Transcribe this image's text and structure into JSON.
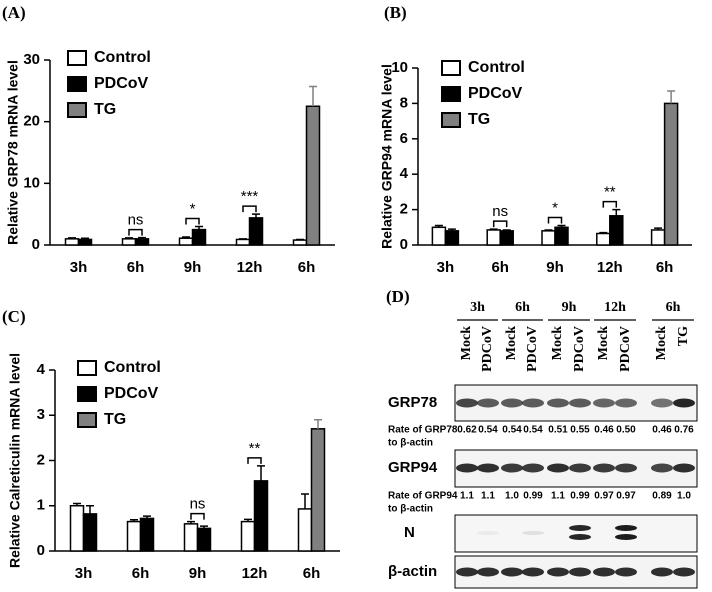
{
  "chart_data": [
    {
      "type": "bar",
      "panel": "(A)",
      "ylabel": "Relative GRP78 mRNA level",
      "categories": [
        "3h",
        "6h",
        "9h",
        "12h",
        "6h"
      ],
      "series": [
        {
          "name": "Control",
          "color": "#ffffff",
          "values": [
            1.0,
            1.0,
            1.1,
            0.9,
            0.8
          ],
          "errors": [
            0.15,
            0.15,
            0.2,
            0.1,
            0.1
          ]
        },
        {
          "name": "PDCoV",
          "color": "#000000",
          "values": [
            0.9,
            1.0,
            2.5,
            4.4,
            null
          ],
          "errors": [
            0.2,
            0.2,
            0.5,
            0.6,
            null
          ]
        },
        {
          "name": "TG",
          "color": "#808080",
          "values": [
            null,
            null,
            null,
            null,
            22.5
          ],
          "errors": [
            null,
            null,
            null,
            null,
            3.2
          ]
        }
      ],
      "annotations": [
        null,
        "ns",
        "*",
        "***",
        null
      ],
      "ylim": [
        0,
        30
      ],
      "yticks": [
        0,
        10,
        20,
        30
      ]
    },
    {
      "type": "bar",
      "panel": "(B)",
      "ylabel": "Relative GRP94 mRNA level",
      "categories": [
        "3h",
        "6h",
        "9h",
        "12h",
        "6h"
      ],
      "series": [
        {
          "name": "Control",
          "color": "#ffffff",
          "values": [
            1.0,
            0.85,
            0.8,
            0.65,
            0.85
          ],
          "errors": [
            0.1,
            0.05,
            0.05,
            0.05,
            0.1
          ]
        },
        {
          "name": "PDCoV",
          "color": "#000000",
          "values": [
            0.8,
            0.8,
            1.0,
            1.65,
            null
          ],
          "errors": [
            0.1,
            0.05,
            0.1,
            0.35,
            null
          ]
        },
        {
          "name": "TG",
          "color": "#808080",
          "values": [
            null,
            null,
            null,
            null,
            8.0
          ],
          "errors": [
            null,
            null,
            null,
            null,
            0.7
          ]
        }
      ],
      "annotations": [
        null,
        "ns",
        "*",
        "**",
        null
      ],
      "ylim": [
        0,
        10
      ],
      "yticks": [
        0,
        2,
        4,
        6,
        8,
        10
      ]
    },
    {
      "type": "bar",
      "panel": "(C)",
      "ylabel": "Relative Calreticulin mRNA level",
      "categories": [
        "3h",
        "6h",
        "9h",
        "12h",
        "6h"
      ],
      "series": [
        {
          "name": "Control",
          "color": "#ffffff",
          "values": [
            1.0,
            0.65,
            0.6,
            0.65,
            0.93
          ],
          "errors": [
            0.05,
            0.04,
            0.05,
            0.05,
            0.33
          ]
        },
        {
          "name": "PDCoV",
          "color": "#000000",
          "values": [
            0.82,
            0.72,
            0.5,
            1.55,
            null
          ],
          "errors": [
            0.18,
            0.05,
            0.05,
            0.33,
            null
          ]
        },
        {
          "name": "TG",
          "color": "#808080",
          "values": [
            null,
            null,
            null,
            null,
            2.7
          ],
          "errors": [
            null,
            null,
            null,
            null,
            0.2
          ]
        }
      ],
      "annotations": [
        null,
        null,
        "ns",
        "**",
        null
      ],
      "ylim": [
        0,
        4
      ],
      "yticks": [
        0,
        1,
        2,
        3,
        4
      ]
    }
  ],
  "blot": {
    "panel": "(D)",
    "time_groups": [
      "3h",
      "6h",
      "9h",
      "12h",
      "6h"
    ],
    "lanes": [
      "Mock",
      "PDCoV",
      "Mock",
      "PDCoV",
      "Mock",
      "PDCoV",
      "Mock",
      "PDCoV",
      "Mock",
      "TG"
    ],
    "bands": [
      "GRP78",
      "GRP94",
      "N",
      "β-actin"
    ],
    "rates": [
      {
        "label": [
          "Rate of GRP78",
          "to β-actin"
        ],
        "values": [
          "0.62",
          "0.54",
          "0.54",
          "0.54",
          "0.51",
          "0.55",
          "0.46",
          "0.50",
          "0.46",
          "0.76"
        ]
      },
      {
        "label": [
          "Rate of GRP94",
          "to β-actin"
        ],
        "values": [
          "1.1",
          "1.1",
          "1.0",
          "0.99",
          "1.1",
          "0.99",
          "0.97",
          "0.97",
          "0.89",
          "1.0"
        ]
      }
    ]
  }
}
